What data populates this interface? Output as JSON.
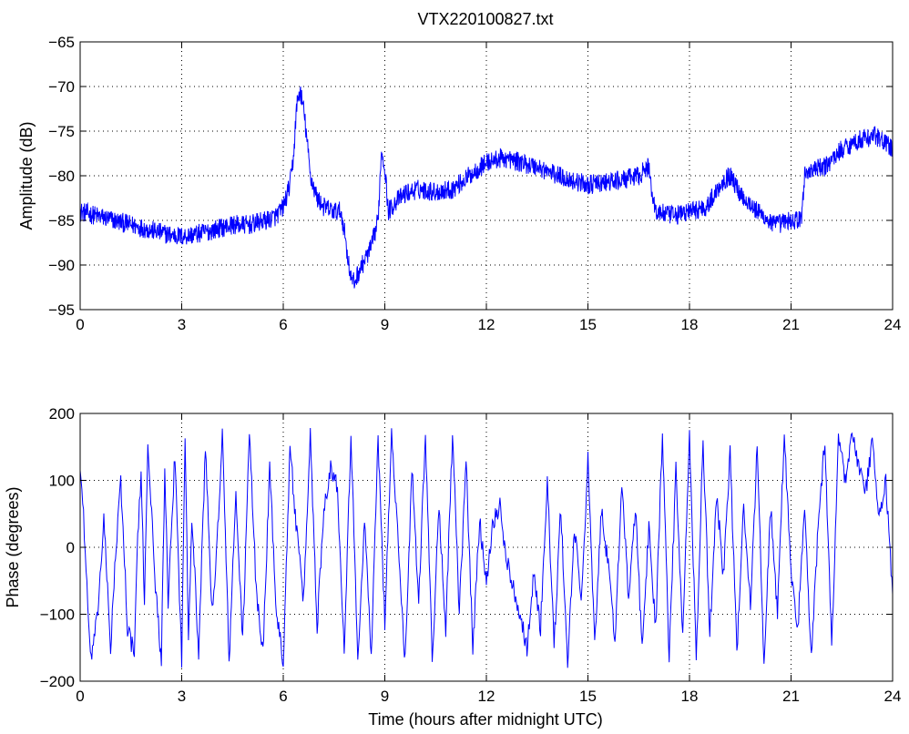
{
  "chart_data": [
    {
      "type": "line",
      "title": "VTX220100827.txt",
      "xlabel": "",
      "ylabel": "Amplitude (dB)",
      "xlim": [
        0,
        24
      ],
      "ylim": [
        -95,
        -65
      ],
      "xticks": [
        0,
        3,
        6,
        9,
        12,
        15,
        18,
        21,
        24
      ],
      "yticks": [
        -95,
        -90,
        -85,
        -80,
        -75,
        -70,
        -65
      ],
      "xticklabels": [
        "0",
        "3",
        "6",
        "9",
        "12",
        "15",
        "18",
        "21",
        "24"
      ],
      "yticklabels": [
        "−95",
        "−90",
        "−85",
        "−80",
        "−75",
        "−70",
        "−65"
      ],
      "grid": true,
      "series_color": "#0000ff",
      "series": [
        {
          "x": [
            0,
            0.5,
            1,
            1.5,
            2,
            2.5,
            3,
            3.5,
            4,
            4.5,
            5,
            5.5,
            5.8,
            6.0,
            6.2,
            6.3,
            6.4,
            6.5,
            6.6,
            6.7,
            6.8,
            7.0,
            7.2,
            7.5,
            7.7,
            7.8,
            7.9,
            8.0,
            8.1,
            8.2,
            8.4,
            8.6,
            8.8,
            8.9,
            9.0,
            9.1,
            9.3,
            9.6,
            10.0,
            10.5,
            11.0,
            11.5,
            12.0,
            12.5,
            13.0,
            13.5,
            14.0,
            14.5,
            15.0,
            15.5,
            16.0,
            16.5,
            16.8,
            16.9,
            17.0,
            17.5,
            18.0,
            18.5,
            19.0,
            19.2,
            19.5,
            20.0,
            20.5,
            21.0,
            21.3,
            21.4,
            21.5,
            22.0,
            22.5,
            23.0,
            23.5,
            24.0
          ],
          "y": [
            -84.0,
            -84.5,
            -85.0,
            -85.5,
            -86.0,
            -86.5,
            -86.8,
            -86.5,
            -86.0,
            -85.5,
            -85.5,
            -85.0,
            -84.5,
            -83.5,
            -81.0,
            -78.0,
            -72.0,
            -70.5,
            -72.5,
            -76.0,
            -80.0,
            -82.5,
            -83.5,
            -84.0,
            -84.0,
            -86.0,
            -89.0,
            -91.5,
            -92.0,
            -91.0,
            -89.5,
            -88.0,
            -85.0,
            -77.0,
            -79.0,
            -84.0,
            -83.0,
            -82.0,
            -81.5,
            -81.8,
            -81.5,
            -80.0,
            -78.5,
            -78.0,
            -78.5,
            -79.0,
            -79.8,
            -80.5,
            -81.0,
            -80.8,
            -80.5,
            -80.0,
            -79.0,
            -82.0,
            -84.0,
            -84.5,
            -84.0,
            -83.5,
            -80.5,
            -80.0,
            -82.0,
            -84.0,
            -85.5,
            -85.0,
            -85.0,
            -80.0,
            -79.5,
            -79.0,
            -77.0,
            -76.0,
            -75.5,
            -77.0
          ]
        }
      ]
    },
    {
      "type": "line",
      "title": "",
      "xlabel": "Time (hours after midnight UTC)",
      "ylabel": "Phase (degrees)",
      "xlim": [
        0,
        24
      ],
      "ylim": [
        -200,
        200
      ],
      "xticks": [
        0,
        3,
        6,
        9,
        12,
        15,
        18,
        21,
        24
      ],
      "yticks": [
        -200,
        -100,
        0,
        100,
        200
      ],
      "xticklabels": [
        "0",
        "3",
        "6",
        "9",
        "12",
        "15",
        "18",
        "21",
        "24"
      ],
      "yticklabels": [
        "−200",
        "−100",
        "0",
        "100",
        "200"
      ],
      "grid": true,
      "series_color": "#0000ff",
      "series": [
        {
          "x": [
            0,
            0.1,
            0.2,
            0.3,
            0.5,
            0.7,
            0.9,
            1.0,
            1.2,
            1.4,
            1.6,
            1.7,
            1.8,
            1.9,
            2.0,
            2.2,
            2.4,
            2.5,
            2.6,
            2.8,
            3.0,
            3.1,
            3.2,
            3.3,
            3.5,
            3.7,
            3.9,
            4.0,
            4.2,
            4.4,
            4.6,
            4.8,
            5.0,
            5.2,
            5.4,
            5.6,
            5.8,
            6.0,
            6.2,
            6.4,
            6.6,
            6.8,
            7.0,
            7.2,
            7.4,
            7.6,
            7.8,
            8.0,
            8.2,
            8.4,
            8.6,
            8.8,
            9.0,
            9.2,
            9.4,
            9.6,
            9.8,
            10.0,
            10.2,
            10.4,
            10.6,
            10.8,
            11.0,
            11.2,
            11.4,
            11.6,
            11.8,
            12.0,
            12.2,
            12.4,
            12.6,
            12.8,
            13.0,
            13.2,
            13.4,
            13.6,
            13.8,
            14.0,
            14.2,
            14.4,
            14.6,
            14.8,
            15.0,
            15.2,
            15.4,
            15.6,
            15.8,
            16.0,
            16.2,
            16.4,
            16.6,
            16.8,
            17.0,
            17.2,
            17.4,
            17.6,
            17.8,
            18.0,
            18.2,
            18.4,
            18.6,
            18.8,
            19.0,
            19.2,
            19.4,
            19.6,
            19.8,
            20.0,
            20.2,
            20.4,
            20.6,
            20.8,
            21.0,
            21.2,
            21.4,
            21.6,
            21.8,
            22.0,
            22.2,
            22.4,
            22.6,
            22.8,
            23.0,
            23.2,
            23.4,
            23.6,
            23.8,
            24.0
          ],
          "y": [
            120,
            50,
            -60,
            -170,
            -110,
            40,
            -150,
            -50,
            100,
            -120,
            -160,
            20,
            100,
            -80,
            160,
            -40,
            -170,
            120,
            -90,
            140,
            -170,
            170,
            -130,
            50,
            -160,
            150,
            -100,
            -40,
            170,
            -170,
            80,
            -140,
            170,
            -60,
            -160,
            120,
            -100,
            -170,
            150,
            20,
            -80,
            170,
            -120,
            60,
            120,
            90,
            -150,
            170,
            -170,
            40,
            -160,
            160,
            -110,
            170,
            0,
            -170,
            120,
            -80,
            170,
            -170,
            60,
            -120,
            170,
            -100,
            130,
            -150,
            40,
            -50,
            40,
            60,
            -20,
            -60,
            -100,
            -150,
            -40,
            -120,
            100,
            -150,
            60,
            -180,
            30,
            -80,
            130,
            -150,
            60,
            -30,
            -140,
            100,
            -80,
            60,
            -150,
            30,
            -120,
            170,
            -170,
            120,
            -140,
            170,
            -170,
            160,
            -130,
            80,
            -40,
            140,
            -160,
            70,
            -90,
            150,
            -170,
            60,
            -100,
            170,
            -40,
            -120,
            60,
            -170,
            30,
            160,
            -150,
            170,
            100,
            170,
            120,
            80,
            160,
            40,
            100,
            -70
          ]
        }
      ]
    }
  ]
}
